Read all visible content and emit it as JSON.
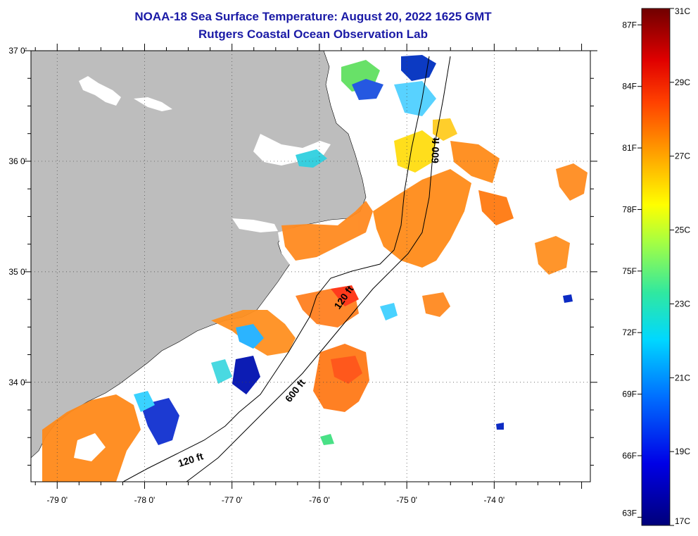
{
  "title": {
    "line1": "NOAA-18 Sea Surface Temperature:  August 20, 2022 1625 GMT",
    "line2": "Rutgers Coastal Ocean Observation Lab"
  },
  "map": {
    "lat_labels": [
      "37 0'",
      "36 0'",
      "35 0'",
      "34 0'"
    ],
    "lat_values": [
      37,
      36,
      35,
      34
    ],
    "lon_labels": [
      "-79 0'",
      "-78 0'",
      "-77 0'",
      "-76 0'",
      "-75 0'",
      "-74 0'"
    ],
    "lon_values": [
      -79,
      -78,
      -77,
      -76,
      -75,
      -74
    ],
    "lon_range": [
      -79.3,
      -72.9
    ],
    "lat_range": [
      33.1,
      37.0
    ],
    "isobath_labels": {
      "inner_north": "120 ft",
      "inner_south": "120 ft",
      "outer_north": "600 ft",
      "outer_south": "600 ft"
    },
    "colors": {
      "land": "#bdbdbd",
      "ocean": "#ffffff",
      "title": "#1a1aa6"
    }
  },
  "colorbar": {
    "fahrenheit_labels": [
      "87F",
      "84F",
      "81F",
      "78F",
      "75F",
      "72F",
      "69F",
      "66F",
      "63F"
    ],
    "fahrenheit_values": [
      87,
      84,
      81,
      78,
      75,
      72,
      69,
      66,
      63
    ],
    "celsius_labels": [
      "31C",
      "29C",
      "27C",
      "25C",
      "23C",
      "21C",
      "19C",
      "17C"
    ],
    "celsius_values": [
      31,
      29,
      27,
      25,
      23,
      21,
      19,
      17
    ],
    "range_c": [
      17,
      31
    ]
  }
}
